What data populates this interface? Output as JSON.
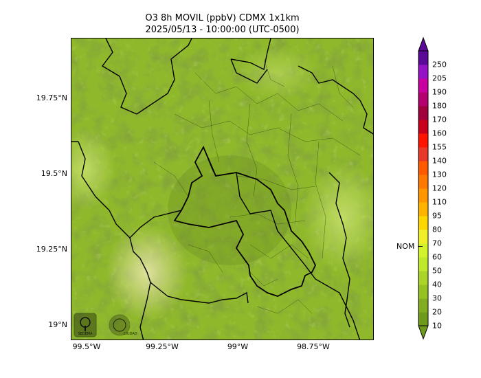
{
  "title": {
    "line1": "O3 8h MOVIL (ppbV) CDMX 1x1km",
    "line2": "2025/05/13 - 10:00:00 (UTC-0500)"
  },
  "map": {
    "lat_ticks": [
      "19.75°N",
      "19.5°N",
      "19.25°N",
      "19°N"
    ],
    "lon_ticks": [
      "99.5°W",
      "99.25°W",
      "99°W",
      "98.75°W"
    ],
    "base_color": "#8fb82c",
    "logos": [
      "sedema-logo",
      "ciudad-de-mexico-logo"
    ]
  },
  "colorbar": {
    "levels": [
      "10",
      "20",
      "30",
      "40",
      "50",
      "60",
      "70",
      "80",
      "95",
      "110",
      "120",
      "130",
      "140",
      "155",
      "160",
      "170",
      "180",
      "190",
      "205",
      "250"
    ],
    "colors": [
      "#6e9a1e",
      "#82ad22",
      "#96c224",
      "#aad428",
      "#bfe82a",
      "#d2f22c",
      "#f0f02a",
      "#ffd700",
      "#ffb400",
      "#ff9600",
      "#ff7800",
      "#ff5a00",
      "#e8382a",
      "#ff1400",
      "#c8001e",
      "#a0003c",
      "#b4006e",
      "#c800a0",
      "#9614c8",
      "#5a0a96"
    ],
    "nom_label": "NOM",
    "nom_value": 70
  }
}
